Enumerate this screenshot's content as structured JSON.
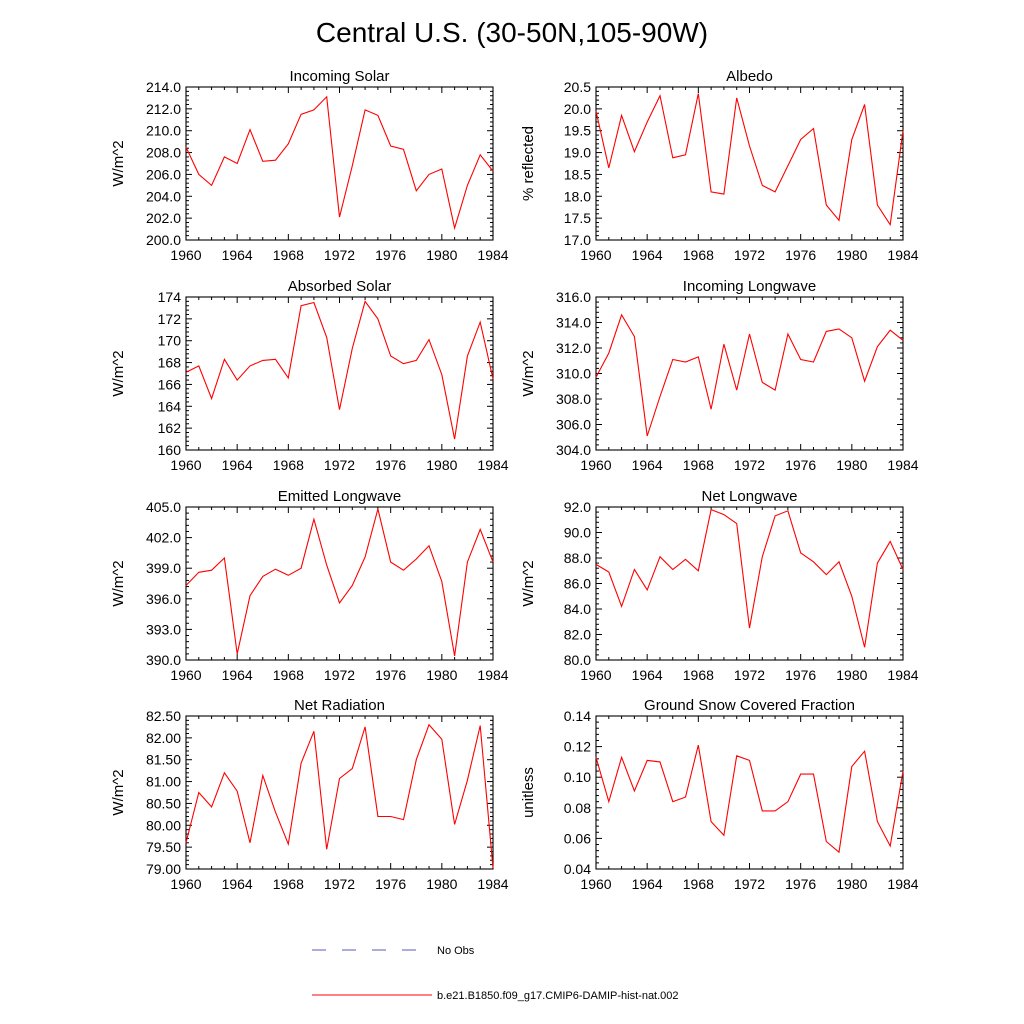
{
  "figure": {
    "title": "Central U.S. (30-50N,105-90W)"
  },
  "chart_data": [
    {
      "type": "line",
      "title": "Incoming Solar",
      "ylabel": "W/m^2",
      "xlim": [
        1960,
        1984
      ],
      "ylim": [
        200,
        214
      ],
      "yticks": [
        "200.0",
        "202.0",
        "204.0",
        "206.0",
        "208.0",
        "210.0",
        "212.0",
        "214.0"
      ],
      "xticks": [
        "1960",
        "1964",
        "1968",
        "1972",
        "1976",
        "1980",
        "1984"
      ],
      "series": [
        {
          "x": [
            1960,
            1961,
            1962,
            1963,
            1964,
            1965,
            1966,
            1967,
            1968,
            1969,
            1970,
            1971,
            1972,
            1973,
            1974,
            1975,
            1976,
            1977,
            1978,
            1979,
            1980,
            1981,
            1982,
            1983,
            1984
          ],
          "values": [
            208.5,
            206.0,
            205.0,
            207.6,
            207.0,
            210.1,
            207.2,
            207.3,
            208.8,
            211.5,
            211.9,
            213.1,
            202.1,
            206.8,
            211.9,
            211.4,
            208.6,
            208.3,
            204.5,
            206.0,
            206.5,
            201.1,
            205.0,
            207.8,
            206.3
          ]
        }
      ]
    },
    {
      "type": "line",
      "title": "Albedo",
      "ylabel": "% reflected",
      "xlim": [
        1960,
        1984
      ],
      "ylim": [
        17.0,
        20.5
      ],
      "yticks": [
        "17.0",
        "17.5",
        "18.0",
        "18.5",
        "19.0",
        "19.5",
        "20.0",
        "20.5"
      ],
      "xticks": [
        "1960",
        "1964",
        "1968",
        "1972",
        "1976",
        "1980",
        "1984"
      ],
      "series": [
        {
          "x": [
            1960,
            1961,
            1962,
            1963,
            1964,
            1965,
            1966,
            1967,
            1968,
            1969,
            1970,
            1971,
            1972,
            1973,
            1974,
            1975,
            1976,
            1977,
            1978,
            1979,
            1980,
            1981,
            1982,
            1983,
            1984
          ],
          "values": [
            19.95,
            18.65,
            19.85,
            19.02,
            19.7,
            20.3,
            18.88,
            18.95,
            20.35,
            18.1,
            18.05,
            20.25,
            19.15,
            18.25,
            18.1,
            18.7,
            19.3,
            19.55,
            17.8,
            17.45,
            19.3,
            20.1,
            17.8,
            17.35,
            19.5
          ]
        }
      ]
    },
    {
      "type": "line",
      "title": "Absorbed Solar",
      "ylabel": "W/m^2",
      "xlim": [
        1960,
        1984
      ],
      "ylim": [
        160,
        174
      ],
      "yticks": [
        "160",
        "162",
        "164",
        "166",
        "168",
        "170",
        "172",
        "174"
      ],
      "xticks": [
        "1960",
        "1964",
        "1968",
        "1972",
        "1976",
        "1980",
        "1984"
      ],
      "series": [
        {
          "x": [
            1960,
            1961,
            1962,
            1963,
            1964,
            1965,
            1966,
            1967,
            1968,
            1969,
            1970,
            1971,
            1972,
            1973,
            1974,
            1975,
            1976,
            1977,
            1978,
            1979,
            1980,
            1981,
            1982,
            1983,
            1984
          ],
          "values": [
            167.1,
            167.7,
            164.7,
            168.3,
            166.4,
            167.7,
            168.2,
            168.3,
            166.6,
            173.2,
            173.5,
            170.3,
            163.7,
            169.3,
            173.6,
            172.0,
            168.6,
            167.9,
            168.2,
            170.1,
            166.9,
            161.0,
            168.6,
            171.7,
            166.5
          ]
        }
      ]
    },
    {
      "type": "line",
      "title": "Incoming Longwave",
      "ylabel": "W/m^2",
      "xlim": [
        1960,
        1984
      ],
      "ylim": [
        304,
        316
      ],
      "yticks": [
        "304.0",
        "306.0",
        "308.0",
        "310.0",
        "312.0",
        "314.0",
        "316.0"
      ],
      "xticks": [
        "1960",
        "1964",
        "1968",
        "1972",
        "1976",
        "1980",
        "1984"
      ],
      "series": [
        {
          "x": [
            1960,
            1961,
            1962,
            1963,
            1964,
            1965,
            1966,
            1967,
            1968,
            1969,
            1970,
            1971,
            1972,
            1973,
            1974,
            1975,
            1976,
            1977,
            1978,
            1979,
            1980,
            1981,
            1982,
            1983,
            1984
          ],
          "values": [
            309.7,
            311.6,
            314.6,
            312.9,
            305.1,
            308.2,
            311.1,
            310.9,
            311.3,
            307.2,
            312.3,
            308.7,
            313.1,
            309.3,
            308.7,
            313.1,
            311.1,
            310.9,
            313.3,
            313.5,
            312.8,
            309.4,
            312.1,
            313.4,
            312.6
          ]
        }
      ]
    },
    {
      "type": "line",
      "title": "Emitted Longwave",
      "ylabel": "W/m^2",
      "xlim": [
        1960,
        1984
      ],
      "ylim": [
        390,
        405
      ],
      "yticks": [
        "390.0",
        "393.0",
        "396.0",
        "399.0",
        "402.0",
        "405.0"
      ],
      "xticks": [
        "1960",
        "1964",
        "1968",
        "1972",
        "1976",
        "1980",
        "1984"
      ],
      "series": [
        {
          "x": [
            1960,
            1961,
            1962,
            1963,
            1964,
            1965,
            1966,
            1967,
            1968,
            1969,
            1970,
            1971,
            1972,
            1973,
            1974,
            1975,
            1976,
            1977,
            1978,
            1979,
            1980,
            1981,
            1982,
            1983,
            1984
          ],
          "values": [
            397.3,
            398.6,
            398.8,
            400.0,
            390.6,
            396.3,
            398.2,
            398.9,
            398.3,
            399.0,
            403.8,
            399.3,
            395.6,
            397.3,
            400.1,
            404.8,
            399.6,
            398.8,
            399.9,
            401.2,
            397.7,
            390.4,
            399.6,
            402.8,
            399.6
          ]
        }
      ]
    },
    {
      "type": "line",
      "title": "Net Longwave",
      "ylabel": "W/m^2",
      "xlim": [
        1960,
        1984
      ],
      "ylim": [
        80,
        92
      ],
      "yticks": [
        "80.0",
        "82.0",
        "84.0",
        "86.0",
        "88.0",
        "90.0",
        "92.0"
      ],
      "xticks": [
        "1960",
        "1964",
        "1968",
        "1972",
        "1976",
        "1980",
        "1984"
      ],
      "series": [
        {
          "x": [
            1960,
            1961,
            1962,
            1963,
            1964,
            1965,
            1966,
            1967,
            1968,
            1969,
            1970,
            1971,
            1972,
            1973,
            1974,
            1975,
            1976,
            1977,
            1978,
            1979,
            1980,
            1981,
            1982,
            1983,
            1984
          ],
          "values": [
            87.5,
            86.9,
            84.2,
            87.1,
            85.5,
            88.1,
            87.1,
            87.9,
            87.0,
            91.8,
            91.4,
            90.7,
            82.5,
            88.1,
            91.3,
            91.7,
            88.4,
            87.7,
            86.7,
            87.7,
            85.0,
            81.0,
            87.6,
            89.3,
            87.1
          ]
        }
      ]
    },
    {
      "type": "line",
      "title": "Net Radiation",
      "ylabel": "W/m^2",
      "xlim": [
        1960,
        1984
      ],
      "ylim": [
        79.0,
        82.5
      ],
      "yticks": [
        "79.00",
        "79.50",
        "80.00",
        "80.50",
        "81.00",
        "81.50",
        "82.00",
        "82.50"
      ],
      "xticks": [
        "1960",
        "1964",
        "1968",
        "1972",
        "1976",
        "1980",
        "1984"
      ],
      "series": [
        {
          "x": [
            1960,
            1961,
            1962,
            1963,
            1964,
            1965,
            1966,
            1967,
            1968,
            1969,
            1970,
            1971,
            1972,
            1973,
            1974,
            1975,
            1976,
            1977,
            1978,
            1979,
            1980,
            1981,
            1982,
            1983,
            1984
          ],
          "values": [
            79.6,
            80.75,
            80.42,
            81.2,
            80.78,
            79.6,
            81.14,
            80.3,
            79.57,
            81.42,
            82.15,
            79.45,
            81.07,
            81.3,
            82.25,
            80.2,
            80.2,
            80.13,
            81.5,
            82.3,
            81.97,
            80.02,
            81.03,
            82.28,
            79.02
          ]
        }
      ]
    },
    {
      "type": "line",
      "title": "Ground Snow Covered Fraction",
      "ylabel": "unitless",
      "xlim": [
        1960,
        1984
      ],
      "ylim": [
        0.04,
        0.14
      ],
      "yticks": [
        "0.04",
        "0.06",
        "0.08",
        "0.10",
        "0.12",
        "0.14"
      ],
      "xticks": [
        "1960",
        "1964",
        "1968",
        "1972",
        "1976",
        "1980",
        "1984"
      ],
      "series": [
        {
          "x": [
            1960,
            1961,
            1962,
            1963,
            1964,
            1965,
            1966,
            1967,
            1968,
            1969,
            1970,
            1971,
            1972,
            1973,
            1974,
            1975,
            1976,
            1977,
            1978,
            1979,
            1980,
            1981,
            1982,
            1983,
            1984
          ],
          "values": [
            0.113,
            0.084,
            0.113,
            0.091,
            0.111,
            0.11,
            0.084,
            0.087,
            0.121,
            0.071,
            0.062,
            0.114,
            0.111,
            0.078,
            0.078,
            0.084,
            0.102,
            0.102,
            0.058,
            0.051,
            0.107,
            0.117,
            0.071,
            0.055,
            0.104
          ]
        }
      ]
    }
  ],
  "legend": {
    "placement": "bottom-center",
    "items": [
      {
        "label": "No Obs",
        "color": "#5a5ab8",
        "style": "dashed"
      },
      {
        "label": "b.e21.B1850.f09_g17.CMIP6-DAMIP-hist-nat.002",
        "color": "#ff0000",
        "style": "solid"
      }
    ]
  }
}
